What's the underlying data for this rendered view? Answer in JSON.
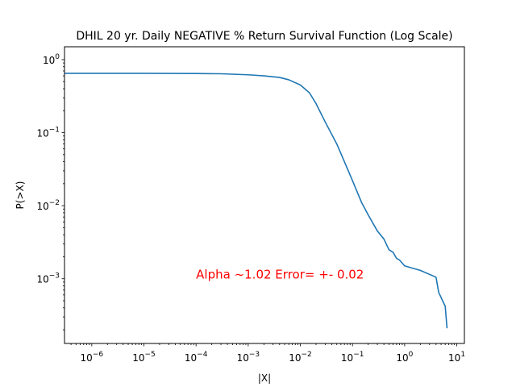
{
  "chart_data": {
    "type": "line",
    "title": "DHIL 20 yr. Daily NEGATIVE % Return Survival Function (Log Scale)",
    "xlabel": "|X|",
    "ylabel": "P(>X)",
    "xscale": "log",
    "yscale": "log",
    "xlim": [
      3e-07,
      14
    ],
    "ylim": [
      0.00013,
      1.5
    ],
    "grid": false,
    "x_ticks": [
      {
        "base": "10",
        "exp": "−6",
        "value": 1e-06
      },
      {
        "base": "10",
        "exp": "−5",
        "value": 1e-05
      },
      {
        "base": "10",
        "exp": "−4",
        "value": 0.0001
      },
      {
        "base": "10",
        "exp": "−3",
        "value": 0.001
      },
      {
        "base": "10",
        "exp": "−2",
        "value": 0.01
      },
      {
        "base": "10",
        "exp": "−1",
        "value": 0.1
      },
      {
        "base": "10",
        "exp": "0",
        "value": 1
      },
      {
        "base": "10",
        "exp": "1",
        "value": 10
      }
    ],
    "y_ticks": [
      {
        "base": "10",
        "exp": "−3",
        "value": 0.001
      },
      {
        "base": "10",
        "exp": "−2",
        "value": 0.01
      },
      {
        "base": "10",
        "exp": "−1",
        "value": 0.1
      },
      {
        "base": "10",
        "exp": "0",
        "value": 1
      }
    ],
    "annotation": {
      "text": "Alpha ~1.02  Error= +- 0.02",
      "x": 0.0001,
      "y": 0.001,
      "color": "#ff0000"
    },
    "series": [
      {
        "color": "#1f77b4",
        "x": [
          3e-07,
          1e-06,
          1e-05,
          0.0001,
          0.0003,
          0.001,
          0.002,
          0.004,
          0.006,
          0.01,
          0.015,
          0.02,
          0.03,
          0.05,
          0.07,
          0.1,
          0.15,
          0.2,
          0.3,
          0.4,
          0.5,
          0.6,
          0.7,
          0.8,
          1.0,
          2.0,
          4.0,
          4.5,
          6.0,
          6.5
        ],
        "y": [
          0.65,
          0.65,
          0.65,
          0.645,
          0.64,
          0.62,
          0.6,
          0.57,
          0.53,
          0.45,
          0.35,
          0.25,
          0.14,
          0.07,
          0.04,
          0.022,
          0.011,
          0.0075,
          0.0045,
          0.0035,
          0.0025,
          0.0023,
          0.0019,
          0.0018,
          0.0015,
          0.0013,
          0.00105,
          0.00065,
          0.00042,
          0.00021
        ]
      }
    ]
  }
}
